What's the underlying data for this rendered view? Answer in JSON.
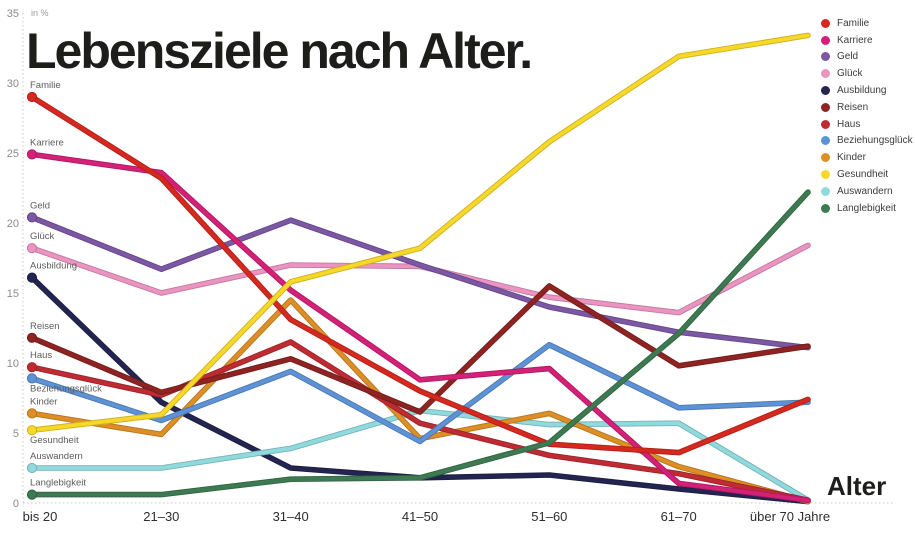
{
  "title": "Lebensziele nach Alter.",
  "unit_label": "in %",
  "x_axis_label": "Alter",
  "chart_data": {
    "type": "line",
    "categories": [
      "bis 20",
      "21–30",
      "31–40",
      "41–50",
      "51–60",
      "61–70",
      "über 70 Jahre"
    ],
    "ylim": [
      0,
      35
    ],
    "y_ticks": [
      0,
      5,
      10,
      15,
      20,
      25,
      30,
      35
    ],
    "grid": "dotted-axes-only",
    "legend_position": "top-right",
    "series": [
      {
        "name": "Familie",
        "color": "#d6281e",
        "label_position": "above",
        "values": [
          29.0,
          23.2,
          13.1,
          8.0,
          4.2,
          3.6,
          7.4
        ]
      },
      {
        "name": "Karriere",
        "color": "#d42076",
        "label_position": "above",
        "values": [
          24.9,
          23.6,
          15.2,
          8.8,
          9.6,
          1.4,
          0.2
        ]
      },
      {
        "name": "Geld",
        "color": "#7b57a4",
        "label_position": "above",
        "values": [
          20.4,
          16.7,
          20.2,
          17.0,
          14.0,
          12.2,
          11.1
        ]
      },
      {
        "name": "Glück",
        "color": "#eb94c1",
        "label_position": "above",
        "values": [
          18.2,
          15.0,
          17.0,
          16.9,
          14.7,
          13.6,
          18.4
        ]
      },
      {
        "name": "Ausbildung",
        "color": "#232450",
        "label_position": "above",
        "values": [
          16.1,
          7.2,
          2.5,
          1.8,
          2.0,
          1.0,
          0.1
        ]
      },
      {
        "name": "Reisen",
        "color": "#8e2322",
        "label_position": "above",
        "values": [
          11.8,
          7.9,
          10.3,
          6.5,
          15.5,
          9.8,
          11.2
        ]
      },
      {
        "name": "Haus",
        "color": "#bf2b33",
        "label_position": "above",
        "values": [
          9.7,
          7.7,
          11.5,
          5.7,
          3.4,
          2.1,
          0.2
        ]
      },
      {
        "name": "Beziehungsglück",
        "color": "#5d92d6",
        "label_position": "below",
        "values": [
          8.9,
          5.9,
          9.4,
          4.4,
          11.3,
          6.8,
          7.2
        ]
      },
      {
        "name": "Kinder",
        "color": "#dd8f26",
        "label_position": "above",
        "values": [
          6.4,
          4.9,
          14.5,
          4.6,
          6.4,
          2.6,
          0.1
        ]
      },
      {
        "name": "Gesundheit",
        "color": "#f7d829",
        "label_position": "below",
        "values": [
          5.2,
          6.3,
          15.8,
          18.2,
          25.8,
          31.9,
          33.4
        ]
      },
      {
        "name": "Auswandern",
        "color": "#90dade",
        "label_position": "above",
        "values": [
          2.5,
          2.5,
          3.9,
          6.6,
          5.6,
          5.7,
          0.2
        ]
      },
      {
        "name": "Langlebigkeit",
        "color": "#3d7a52",
        "label_position": "above",
        "values": [
          0.6,
          0.6,
          1.7,
          1.8,
          4.3,
          12.1,
          22.2
        ]
      }
    ]
  }
}
